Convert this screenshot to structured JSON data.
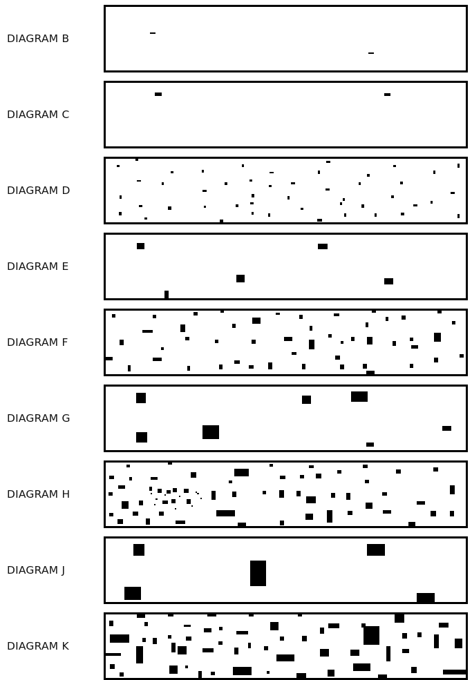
{
  "diagrams": [
    {
      "label": "DIAGRAM B"
    },
    {
      "label": "DIAGRAM C"
    },
    {
      "label": "DIAGRAM D"
    },
    {
      "label": "DIAGRAM E"
    },
    {
      "label": "DIAGRAM F"
    },
    {
      "label": "DIAGRAM G"
    },
    {
      "label": "DIAGRAM H"
    },
    {
      "label": "DIAGRAM J"
    },
    {
      "label": "DIAGRAM K"
    }
  ]
}
